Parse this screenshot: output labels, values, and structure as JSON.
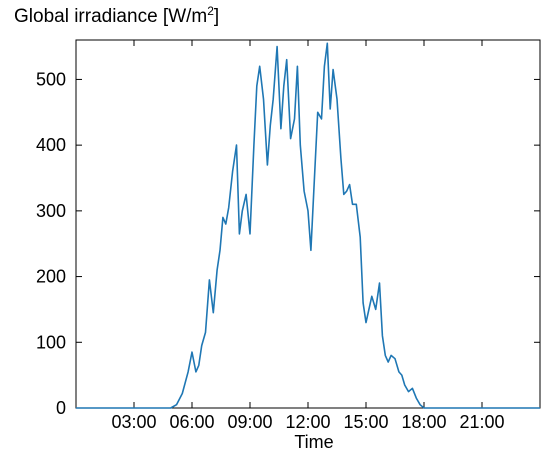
{
  "chart_data": {
    "type": "line",
    "title_main": "Global irradiance [W/m",
    "title_sup": "2",
    "title_end": "]",
    "xlabel": "Time",
    "ylabel": "",
    "x_unit": "hours of day",
    "xlim": [
      0,
      24
    ],
    "ylim": [
      0,
      560
    ],
    "grid": false,
    "legend": "none",
    "line_color": "#1f77b4",
    "yticks": [
      0,
      100,
      200,
      300,
      400,
      500
    ],
    "ytick_labels": [
      "0",
      "100",
      "200",
      "300",
      "400",
      "500"
    ],
    "xticks": [
      3,
      6,
      9,
      12,
      15,
      18,
      21
    ],
    "xtick_labels": [
      "03:00",
      "06:00",
      "09:00",
      "12:00",
      "15:00",
      "18:00",
      "21:00"
    ],
    "series": [
      {
        "x": [
          0,
          4.9,
          5.2,
          5.5,
          5.8,
          6.0,
          6.2,
          6.35,
          6.5,
          6.7,
          6.9,
          7.1,
          7.3,
          7.45,
          7.6,
          7.75,
          7.9,
          8.1,
          8.3,
          8.45,
          8.6,
          8.8,
          9.0,
          9.2,
          9.35,
          9.5,
          9.7,
          9.9,
          10.05,
          10.2,
          10.4,
          10.6,
          10.75,
          10.9,
          11.1,
          11.3,
          11.45,
          11.6,
          11.8,
          12.0,
          12.15,
          12.3,
          12.5,
          12.7,
          12.85,
          13.0,
          13.15,
          13.3,
          13.5,
          13.7,
          13.85,
          14.0,
          14.15,
          14.3,
          14.5,
          14.7,
          14.85,
          15.0,
          15.15,
          15.3,
          15.5,
          15.7,
          15.85,
          16.0,
          16.15,
          16.3,
          16.5,
          16.7,
          16.85,
          17.0,
          17.2,
          17.4,
          17.6,
          17.8,
          18.0,
          18.3,
          18.6,
          19.0,
          24
        ],
        "y": [
          0,
          0,
          5,
          22,
          55,
          85,
          55,
          65,
          95,
          115,
          195,
          145,
          210,
          240,
          290,
          280,
          305,
          360,
          400,
          265,
          300,
          325,
          265,
          400,
          490,
          520,
          470,
          370,
          430,
          470,
          550,
          425,
          490,
          530,
          410,
          440,
          520,
          400,
          330,
          300,
          240,
          330,
          450,
          440,
          520,
          555,
          455,
          515,
          470,
          380,
          325,
          330,
          340,
          310,
          310,
          260,
          160,
          130,
          150,
          170,
          150,
          190,
          110,
          80,
          70,
          80,
          75,
          55,
          50,
          35,
          25,
          30,
          15,
          5,
          0,
          0,
          0,
          0,
          0
        ]
      }
    ]
  }
}
